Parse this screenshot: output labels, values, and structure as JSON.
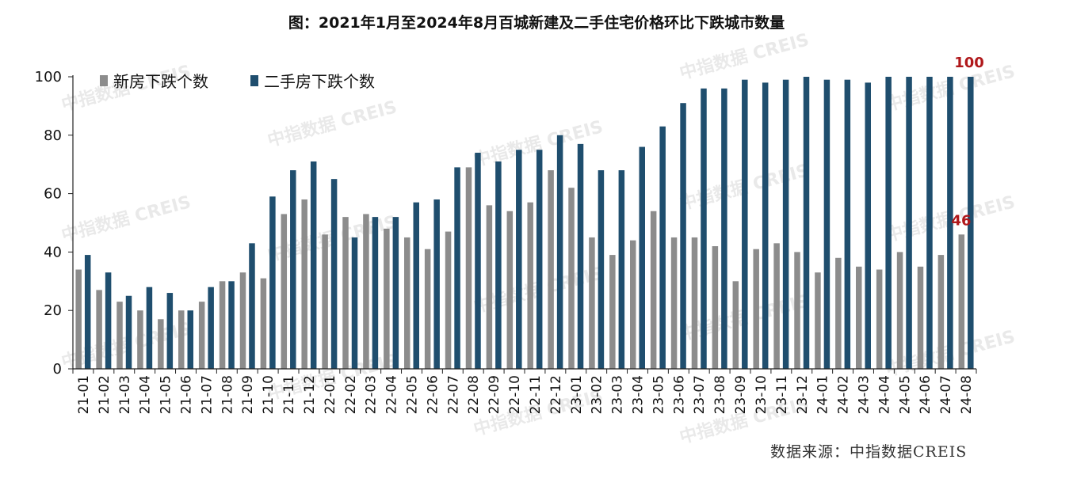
{
  "chart_data": {
    "type": "bar",
    "title": "图：2021年1月至2024年8月百城新建及二手住宅价格环比下跌城市数量",
    "categories": [
      "21-01",
      "21-02",
      "21-03",
      "21-04",
      "21-05",
      "21-06",
      "21-07",
      "21-08",
      "21-09",
      "21-10",
      "21-11",
      "21-12",
      "22-01",
      "22-02",
      "22-03",
      "22-04",
      "22-05",
      "22-06",
      "22-07",
      "22-08",
      "22-09",
      "22-10",
      "22-11",
      "22-12",
      "23-01",
      "23-02",
      "23-03",
      "23-04",
      "23-05",
      "23-06",
      "23-07",
      "23-08",
      "23-09",
      "23-10",
      "23-11",
      "23-12",
      "24-01",
      "24-02",
      "24-03",
      "24-04",
      "24-05",
      "24-06",
      "24-07",
      "24-08"
    ],
    "series": [
      {
        "name": "新房下跌个数",
        "color": "#8c8c8c",
        "values": [
          34,
          27,
          23,
          20,
          17,
          20,
          23,
          30,
          33,
          31,
          53,
          58,
          46,
          52,
          53,
          48,
          45,
          41,
          47,
          69,
          56,
          54,
          57,
          68,
          62,
          45,
          39,
          44,
          54,
          45,
          45,
          42,
          30,
          41,
          43,
          40,
          33,
          38,
          35,
          34,
          40,
          35,
          39,
          46
        ]
      },
      {
        "name": "二手房下跌个数",
        "color": "#1f4e6e",
        "values": [
          39,
          33,
          25,
          28,
          26,
          20,
          28,
          30,
          43,
          59,
          68,
          71,
          65,
          45,
          52,
          52,
          57,
          58,
          69,
          74,
          71,
          75,
          75,
          80,
          77,
          68,
          68,
          76,
          83,
          91,
          96,
          96,
          99,
          98,
          99,
          100,
          99,
          99,
          98,
          100,
          100,
          100,
          100,
          100
        ]
      }
    ],
    "ylim": [
      0,
      100
    ],
    "yticks": [
      0,
      20,
      40,
      60,
      80,
      100
    ],
    "legend_position": "top-left",
    "annotations": [
      "100",
      "46"
    ],
    "grid": false
  },
  "source": "数据来源：中指数据CREIS",
  "watermark": "中指数据 CREIS"
}
